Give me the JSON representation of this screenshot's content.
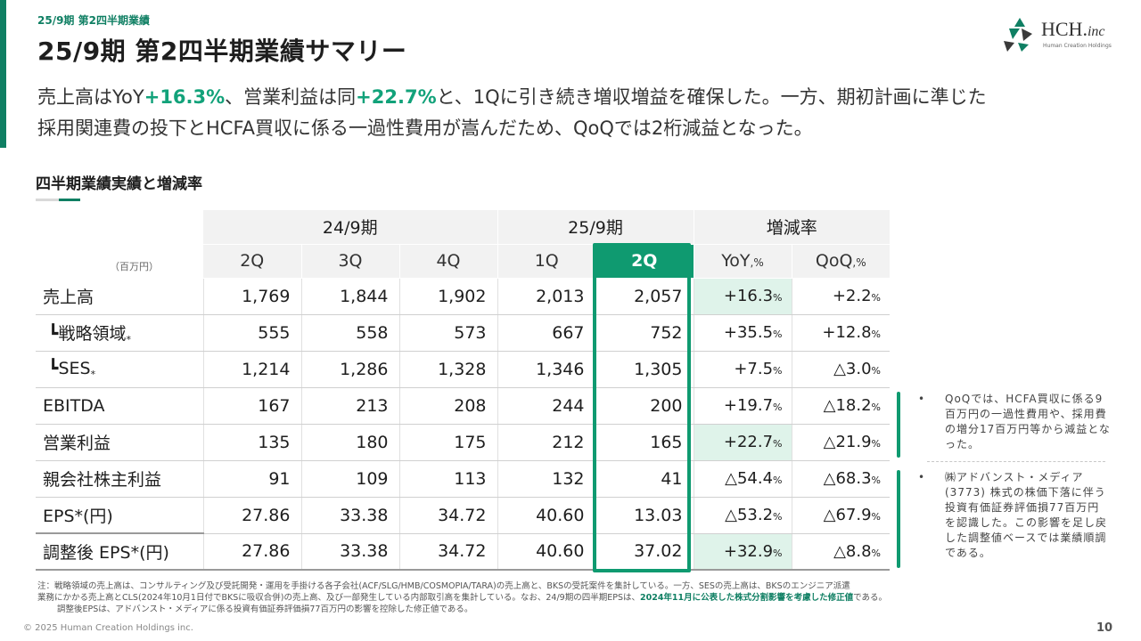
{
  "header": {
    "breadcrumb": "25/9期 第2四半期業績",
    "title": "25/9期 第2四半期業績サマリー"
  },
  "logo": {
    "name": "HCH.",
    "suffix": "inc",
    "sub": "Human Creation Holdings"
  },
  "summary": {
    "p1": "売上高はYoY",
    "h1": "+16.3%",
    "p2": "、営業利益は同",
    "h2": "+22.7%",
    "p3": "と、1Qに引き続き増収増益を確保した。一方、期初計画に準じた",
    "line2": "採用関連費の投下とHCFA買収に係る一過性費用が嵩んだため、QoQでは2桁減益となった。"
  },
  "section": {
    "title": "四半期業績実績と増減率"
  },
  "table": {
    "group_headers": [
      "24/9期",
      "25/9期",
      "増減率"
    ],
    "unit": "（百万円）",
    "quarters": [
      "2Q",
      "3Q",
      "4Q",
      "1Q",
      "2Q"
    ],
    "rate_headers": [
      {
        "main": "YoY",
        "sub": ",%"
      },
      {
        "main": "QoQ",
        "sub": ",%"
      }
    ],
    "rows": [
      {
        "label": "売上高",
        "mark": "",
        "values": [
          "1,769",
          "1,844",
          "1,902",
          "2,013",
          "2,057"
        ],
        "yoy": "+16.3",
        "qoq": "+2.2"
      },
      {
        "label": "┗戦略領域",
        "mark": "*",
        "values": [
          "555",
          "558",
          "573",
          "667",
          "752"
        ],
        "yoy": "+35.5",
        "qoq": "+12.8"
      },
      {
        "label": "┗SES",
        "mark": "*",
        "values": [
          "1,214",
          "1,286",
          "1,328",
          "1,346",
          "1,305"
        ],
        "yoy": "+7.5",
        "qoq": "△3.0"
      },
      {
        "label": "EBITDA",
        "mark": "",
        "values": [
          "167",
          "213",
          "208",
          "244",
          "200"
        ],
        "yoy": "+19.7",
        "qoq": "△18.2"
      },
      {
        "label": "営業利益",
        "mark": "",
        "values": [
          "135",
          "180",
          "175",
          "212",
          "165"
        ],
        "yoy": "+22.7",
        "qoq": "△21.9"
      },
      {
        "label": "親会社株主利益",
        "mark": "",
        "values": [
          "91",
          "109",
          "113",
          "132",
          "41"
        ],
        "yoy": "△54.4",
        "qoq": "△68.3"
      },
      {
        "label": "EPS*(円)",
        "mark": "",
        "values": [
          "27.86",
          "33.38",
          "34.72",
          "40.60",
          "13.03"
        ],
        "yoy": "△53.2",
        "qoq": "△67.9"
      },
      {
        "label": "調整後 EPS*(円)",
        "mark": "",
        "values": [
          "27.86",
          "33.38",
          "34.72",
          "40.60",
          "37.02"
        ],
        "yoy": "+32.9",
        "qoq": "△8.8"
      }
    ],
    "pct_suffix": "%",
    "highlight_color": "#0f9a70"
  },
  "notes": {
    "bullet": "•",
    "n1": "QoQでは、HCFA買収に係る9百万円の一過性費用や、採用費の増分17百万円等から減益となった。",
    "n2": "㈱アドバンスト・メディア(3773) 株式の株価下落に伴う投資有価証券評価損77百万円を認識した。この影響を足し戻した調整値ベースでは業績順調である。"
  },
  "footnote": {
    "line1": "注：戦略領域の売上高は、コンサルティング及び受託開発・運用を手掛ける各子会社(ACF/SLG/HMB/COSMOPIA/TARA)の売上高と、BKSの受託案件を集計している。一方、SESの売上高は、BKSのエンジニア派遣",
    "line2a": "業務にかかる売上高とCLS(2024年10月1日付でBKSに吸収合併)の売上高、及び一部発生している内部取引高を集計している。なお、24/9期の四半期EPSは、",
    "line2b": "2024年11月に公表した株式分割影響を考慮した修正値",
    "line2c": "である。",
    "line3": "調整後EPSは、アドバンスト・メディアに係る投資有価証券評価損77百万円の影響を控除した修正値である。"
  },
  "footer": {
    "copyright": "© 2025 Human Creation Holdings inc.",
    "page": "10"
  }
}
